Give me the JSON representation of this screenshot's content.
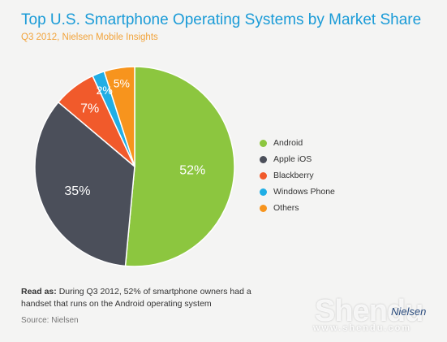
{
  "chart_data": {
    "type": "pie",
    "title": "Top U.S. Smartphone Operating Systems by Market Share",
    "subtitle": "Q3 2012, Nielsen Mobile Insights",
    "categories": [
      "Android",
      "Apple iOS",
      "Blackberry",
      "Windows Phone",
      "Others"
    ],
    "values": [
      52,
      35,
      7,
      2,
      5
    ],
    "labels": [
      "52%",
      "35%",
      "7%",
      "2%",
      "5%"
    ],
    "colors": [
      "#8cc63f",
      "#4b4f5a",
      "#f15a2b",
      "#20aee5",
      "#f7941d"
    ],
    "legend_position": "right"
  },
  "note": {
    "prefix": "Read as:",
    "text": "During Q3 2012, 52% of smartphone owners had a handset that runs on the Android operating system"
  },
  "source": "Source: Nielsen",
  "logo_text": "Nielsen",
  "watermark": {
    "text": "Shendu",
    "url": "www.shendu.com"
  }
}
